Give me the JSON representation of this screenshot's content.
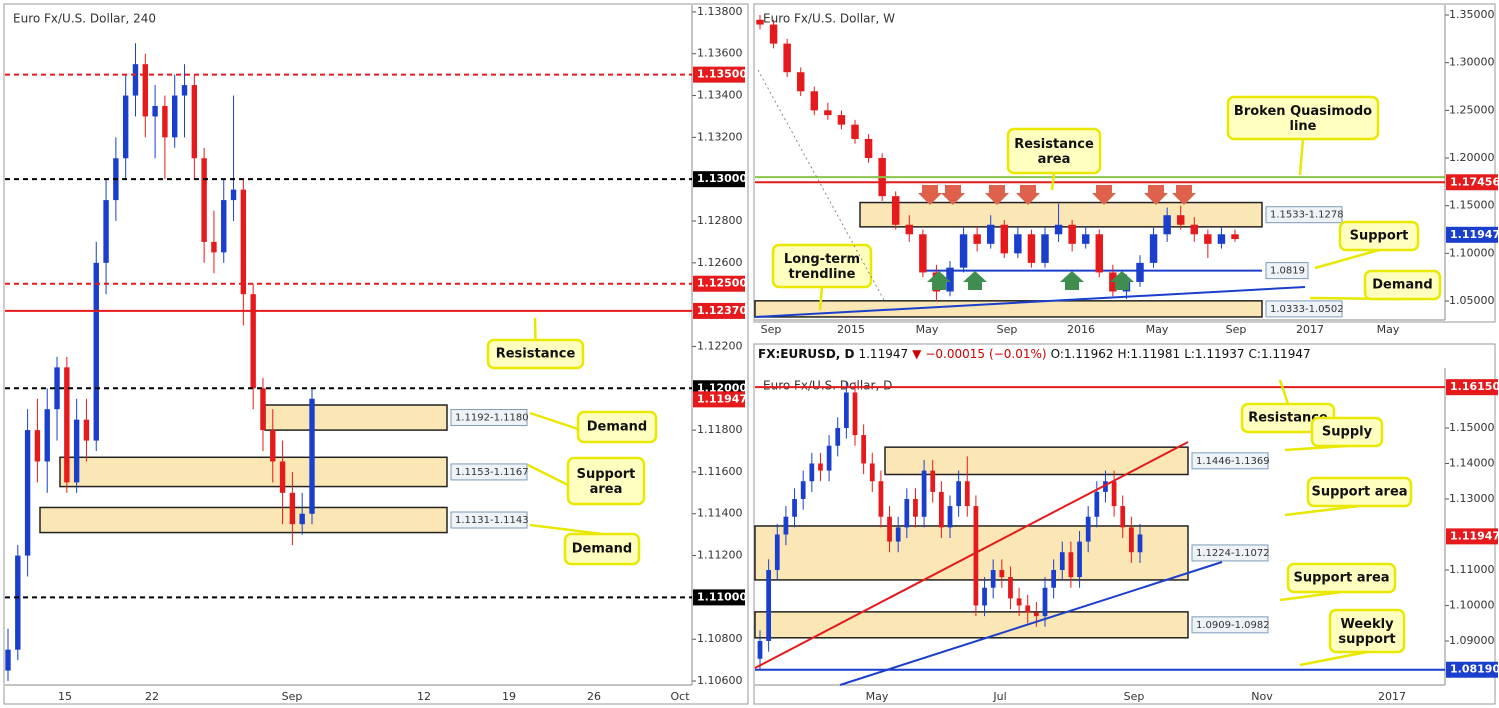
{
  "panels": [
    {
      "type": "candlestick",
      "title": "Euro Fx/U.S. Dollar, 240",
      "ylim": [
        1.10581,
        1.13833
      ],
      "yticks": [
        {
          "value": 1.138,
          "label": "1.13800"
        },
        {
          "value": 1.136,
          "label": "1.13600"
        },
        {
          "value": 1.134,
          "label": "1.13400"
        },
        {
          "value": 1.132,
          "label": "1.13200"
        },
        {
          "value": 1.128,
          "label": "1.12800"
        },
        {
          "value": 1.126,
          "label": "1.12600"
        },
        {
          "value": 1.122,
          "label": "1.12200"
        },
        {
          "value": 1.118,
          "label": "1.11800"
        },
        {
          "value": 1.116,
          "label": "1.11600"
        },
        {
          "value": 1.114,
          "label": "1.11400"
        },
        {
          "value": 1.112,
          "label": "1.11200"
        },
        {
          "value": 1.108,
          "label": "1.10800"
        },
        {
          "value": 1.106,
          "label": "1.10600"
        }
      ],
      "xticks": [
        "15",
        "22",
        "Sep",
        "12",
        "19",
        "26",
        "Oct"
      ],
      "levels": [
        {
          "value": 1.135,
          "label": "1.13500",
          "color": "#e41a1c",
          "style": "dashed"
        },
        {
          "value": 1.13,
          "label": "1.13000",
          "color": "#000000",
          "style": "dashed"
        },
        {
          "value": 1.125,
          "label": "1.12500",
          "color": "#e41a1c",
          "style": "dashed"
        },
        {
          "value": 1.1237,
          "label": "1.12370",
          "color": "#e41a1c",
          "style": "solid"
        },
        {
          "value": 1.12,
          "label": "1.12000",
          "color": "#000000",
          "style": "dashed"
        },
        {
          "value": 1.11,
          "label": "1.11000",
          "color": "#000000",
          "style": "dashed"
        },
        {
          "value": 1.11947,
          "label": "1.11947",
          "color": "#e41a1c",
          "style": "none"
        }
      ],
      "zones": [
        {
          "low": 1.118,
          "high": 1.1192,
          "label": "1.1192-1.1180"
        },
        {
          "low": 1.1153,
          "high": 1.1167,
          "label": "1.1153-1.1167"
        },
        {
          "low": 1.1131,
          "high": 1.1143,
          "label": "1.1131-1.1143"
        }
      ],
      "callouts": [
        "Resistance",
        "Demand",
        "Support\narea",
        "Demand"
      ],
      "candles": [
        [
          1.1065,
          1.1085,
          1.106,
          1.1075
        ],
        [
          1.1075,
          1.1125,
          1.107,
          1.112
        ],
        [
          1.112,
          1.119,
          1.111,
          1.118
        ],
        [
          1.118,
          1.1195,
          1.1155,
          1.1165
        ],
        [
          1.1165,
          1.12,
          1.115,
          1.119
        ],
        [
          1.119,
          1.1215,
          1.1175,
          1.121
        ],
        [
          1.121,
          1.1215,
          1.115,
          1.1155
        ],
        [
          1.1155,
          1.1195,
          1.115,
          1.1185
        ],
        [
          1.1185,
          1.1195,
          1.1165,
          1.1175
        ],
        [
          1.1175,
          1.127,
          1.117,
          1.126
        ],
        [
          1.126,
          1.13,
          1.1245,
          1.129
        ],
        [
          1.129,
          1.132,
          1.128,
          1.131
        ],
        [
          1.131,
          1.135,
          1.13,
          1.134
        ],
        [
          1.134,
          1.1365,
          1.133,
          1.1355
        ],
        [
          1.1355,
          1.136,
          1.132,
          1.133
        ],
        [
          1.133,
          1.1345,
          1.131,
          1.1335
        ],
        [
          1.1335,
          1.134,
          1.13,
          1.132
        ],
        [
          1.132,
          1.135,
          1.1315,
          1.134
        ],
        [
          1.134,
          1.1355,
          1.132,
          1.1345
        ],
        [
          1.1345,
          1.135,
          1.13,
          1.131
        ],
        [
          1.131,
          1.1315,
          1.126,
          1.127
        ],
        [
          1.127,
          1.1285,
          1.1255,
          1.1265
        ],
        [
          1.1265,
          1.13,
          1.126,
          1.129
        ],
        [
          1.129,
          1.134,
          1.128,
          1.1295
        ],
        [
          1.1295,
          1.13,
          1.123,
          1.1245
        ],
        [
          1.1245,
          1.125,
          1.119,
          1.12
        ],
        [
          1.12,
          1.1205,
          1.117,
          1.118
        ],
        [
          1.118,
          1.119,
          1.1155,
          1.1165
        ],
        [
          1.1165,
          1.1175,
          1.1135,
          1.115
        ],
        [
          1.115,
          1.116,
          1.1125,
          1.1135
        ],
        [
          1.1135,
          1.115,
          1.113,
          1.114
        ],
        [
          1.114,
          1.12,
          1.1135,
          1.1195
        ]
      ]
    },
    {
      "type": "candlestick",
      "title": "Euro Fx/U.S. Dollar, W",
      "ylim": [
        1.0301,
        1.3605
      ],
      "yticks": [
        {
          "value": 1.35,
          "label": "1.35000"
        },
        {
          "value": 1.3,
          "label": "1.30000"
        },
        {
          "value": 1.25,
          "label": "1.25000"
        },
        {
          "value": 1.2,
          "label": "1.20000"
        },
        {
          "value": 1.15,
          "label": "1.15000"
        },
        {
          "value": 1.1,
          "label": "1.10000"
        },
        {
          "value": 1.05,
          "label": "1.05000"
        }
      ],
      "xticks": [
        "Sep",
        "2015",
        "May",
        "Sep",
        "2016",
        "May",
        "Sep",
        "2017",
        "May"
      ],
      "levels": [
        {
          "value": 1.18,
          "color": "#8bc34a",
          "style": "solid"
        },
        {
          "value": 1.17456,
          "label": "1.17456",
          "color": "#e41a1c",
          "style": "solid"
        },
        {
          "value": 1.11947,
          "label": "1.11947",
          "color": "#1a3fcc",
          "style": "none"
        }
      ],
      "zones": [
        {
          "low": 1.1278,
          "high": 1.1533,
          "label": "1.1533-1.1278"
        },
        {
          "low": 1.0333,
          "high": 1.0502,
          "label": "1.0333-1.0502"
        }
      ],
      "support": {
        "value": 1.0819,
        "label": "1.0819"
      },
      "callouts": [
        "Broken Quasimodo\nline",
        "Resistance\narea",
        "Support",
        "Demand",
        "Long-term\ntrendline"
      ],
      "candles": [
        [
          1.345,
          1.35,
          1.335,
          1.34
        ],
        [
          1.34,
          1.345,
          1.315,
          1.32
        ],
        [
          1.32,
          1.325,
          1.285,
          1.29
        ],
        [
          1.29,
          1.295,
          1.265,
          1.27
        ],
        [
          1.27,
          1.275,
          1.245,
          1.25
        ],
        [
          1.25,
          1.258,
          1.24,
          1.245
        ],
        [
          1.245,
          1.25,
          1.23,
          1.235
        ],
        [
          1.235,
          1.24,
          1.215,
          1.22
        ],
        [
          1.22,
          1.225,
          1.195,
          1.2
        ],
        [
          1.2,
          1.205,
          1.155,
          1.16
        ],
        [
          1.16,
          1.165,
          1.125,
          1.13
        ],
        [
          1.13,
          1.14,
          1.112,
          1.12
        ],
        [
          1.12,
          1.125,
          1.075,
          1.08
        ],
        [
          1.08,
          1.088,
          1.05,
          1.06
        ],
        [
          1.06,
          1.092,
          1.055,
          1.085
        ],
        [
          1.085,
          1.128,
          1.08,
          1.12
        ],
        [
          1.12,
          1.128,
          1.102,
          1.11
        ],
        [
          1.11,
          1.14,
          1.105,
          1.13
        ],
        [
          1.13,
          1.135,
          1.095,
          1.1
        ],
        [
          1.1,
          1.128,
          1.095,
          1.12
        ],
        [
          1.12,
          1.125,
          1.085,
          1.09
        ],
        [
          1.09,
          1.128,
          1.085,
          1.12
        ],
        [
          1.12,
          1.152,
          1.112,
          1.13
        ],
        [
          1.13,
          1.135,
          1.102,
          1.11
        ],
        [
          1.11,
          1.128,
          1.105,
          1.12
        ],
        [
          1.12,
          1.125,
          1.075,
          1.08
        ],
        [
          1.08,
          1.088,
          1.055,
          1.06
        ],
        [
          1.06,
          1.078,
          1.052,
          1.07
        ],
        [
          1.07,
          1.098,
          1.065,
          1.09
        ],
        [
          1.09,
          1.128,
          1.085,
          1.12
        ],
        [
          1.12,
          1.148,
          1.112,
          1.14
        ],
        [
          1.14,
          1.15,
          1.125,
          1.13
        ],
        [
          1.13,
          1.138,
          1.112,
          1.12
        ],
        [
          1.12,
          1.125,
          1.095,
          1.11
        ],
        [
          1.11,
          1.128,
          1.105,
          1.12
        ],
        [
          1.12,
          1.125,
          1.112,
          1.115
        ]
      ]
    },
    {
      "type": "candlestick",
      "title": "Euro Fx/U.S. Dollar, D",
      "ylim": [
        1.0776,
        1.1669
      ],
      "header": {
        "symbol": "FX:EURUSD, D",
        "last": "1.11947",
        "arrow": "▼",
        "change": "−0.00015",
        "pct": "(−0.01%)",
        "open": "O:1.11962",
        "high": "H:1.11981",
        "low": "L:1.11937",
        "close": "C:1.11947"
      },
      "yticks": [
        {
          "value": 1.15,
          "label": "1.15000"
        },
        {
          "value": 1.14,
          "label": "1.14000"
        },
        {
          "value": 1.13,
          "label": "1.13000"
        },
        {
          "value": 1.11,
          "label": "1.11000"
        },
        {
          "value": 1.1,
          "label": "1.10000"
        },
        {
          "value": 1.09,
          "label": "1.09000"
        }
      ],
      "xticks": [
        "May",
        "Jul",
        "Sep",
        "Nov",
        "2017"
      ],
      "levels": [
        {
          "value": 1.1615,
          "label": "1.16150",
          "color": "#e41a1c",
          "style": "solid"
        },
        {
          "value": 1.0819,
          "label": "1.08190",
          "color": "#1a3fcc",
          "style": "solid"
        },
        {
          "value": 1.11947,
          "label": "1.11947",
          "color": "#e41a1c",
          "style": "none"
        }
      ],
      "zones": [
        {
          "low": 1.1369,
          "high": 1.1446,
          "label": "1.1446-1.1369"
        },
        {
          "low": 1.1072,
          "high": 1.1224,
          "label": "1.1224-1.1072"
        },
        {
          "low": 1.0909,
          "high": 1.0982,
          "label": "1.0909-1.0982"
        }
      ],
      "callouts": [
        "Resistance",
        "Supply",
        "Support area",
        "Support area",
        "Weekly\nsupport"
      ],
      "candles": [
        [
          1.085,
          1.093,
          1.082,
          1.09
        ],
        [
          1.09,
          1.113,
          1.087,
          1.11
        ],
        [
          1.11,
          1.123,
          1.107,
          1.12
        ],
        [
          1.12,
          1.128,
          1.117,
          1.125
        ],
        [
          1.125,
          1.133,
          1.122,
          1.13
        ],
        [
          1.13,
          1.138,
          1.127,
          1.135
        ],
        [
          1.135,
          1.143,
          1.132,
          1.14
        ],
        [
          1.14,
          1.143,
          1.135,
          1.138
        ],
        [
          1.138,
          1.148,
          1.135,
          1.145
        ],
        [
          1.145,
          1.153,
          1.142,
          1.15
        ],
        [
          1.15,
          1.163,
          1.147,
          1.16
        ],
        [
          1.16,
          1.163,
          1.145,
          1.148
        ],
        [
          1.148,
          1.151,
          1.137,
          1.14
        ],
        [
          1.14,
          1.143,
          1.132,
          1.135
        ],
        [
          1.135,
          1.138,
          1.122,
          1.125
        ],
        [
          1.125,
          1.128,
          1.115,
          1.118
        ],
        [
          1.118,
          1.125,
          1.115,
          1.122
        ],
        [
          1.122,
          1.133,
          1.119,
          1.13
        ],
        [
          1.13,
          1.133,
          1.122,
          1.125
        ],
        [
          1.125,
          1.141,
          1.122,
          1.138
        ],
        [
          1.138,
          1.141,
          1.129,
          1.132
        ],
        [
          1.132,
          1.135,
          1.119,
          1.122
        ],
        [
          1.122,
          1.131,
          1.119,
          1.128
        ],
        [
          1.128,
          1.138,
          1.125,
          1.135
        ],
        [
          1.135,
          1.142,
          1.125,
          1.128
        ],
        [
          1.128,
          1.131,
          1.097,
          1.1
        ],
        [
          1.1,
          1.108,
          1.097,
          1.105
        ],
        [
          1.105,
          1.113,
          1.102,
          1.11
        ],
        [
          1.11,
          1.113,
          1.105,
          1.108
        ],
        [
          1.108,
          1.111,
          1.099,
          1.102
        ],
        [
          1.102,
          1.105,
          1.097,
          1.1
        ],
        [
          1.1,
          1.103,
          1.095,
          1.098
        ],
        [
          1.098,
          1.101,
          1.094,
          1.097
        ],
        [
          1.097,
          1.108,
          1.094,
          1.105
        ],
        [
          1.105,
          1.113,
          1.102,
          1.11
        ],
        [
          1.11,
          1.118,
          1.107,
          1.115
        ],
        [
          1.115,
          1.118,
          1.105,
          1.108
        ],
        [
          1.108,
          1.121,
          1.105,
          1.118
        ],
        [
          1.118,
          1.128,
          1.115,
          1.125
        ],
        [
          1.125,
          1.135,
          1.122,
          1.132
        ],
        [
          1.132,
          1.138,
          1.129,
          1.135
        ],
        [
          1.135,
          1.138,
          1.125,
          1.128
        ],
        [
          1.128,
          1.131,
          1.119,
          1.122
        ],
        [
          1.122,
          1.125,
          1.112,
          1.115
        ],
        [
          1.115,
          1.123,
          1.112,
          1.12
        ]
      ]
    }
  ]
}
